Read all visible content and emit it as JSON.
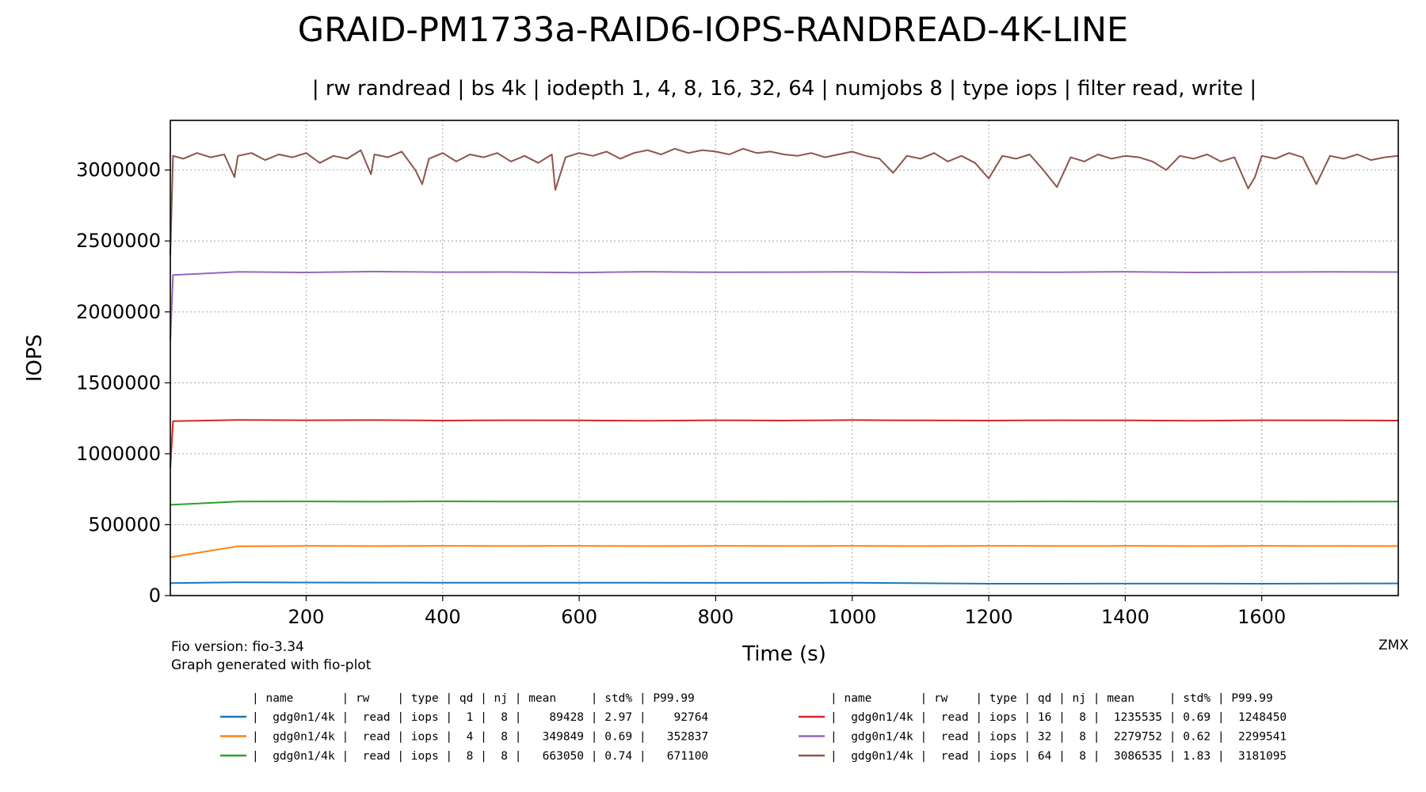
{
  "chart_data": {
    "type": "line",
    "title": "GRAID-PM1733a-RAID6-IOPS-RANDREAD-4K-LINE",
    "subtitle": "| rw randread | bs 4k | iodepth 1, 4, 8, 16, 32, 64 | numjobs 8 | type iops | filter read, write |",
    "xlabel": "Time (s)",
    "ylabel": "IOPS",
    "xlim": [
      1,
      1800
    ],
    "ylim": [
      0,
      3350000
    ],
    "xticks": [
      200,
      400,
      600,
      800,
      1000,
      1200,
      1400,
      1600
    ],
    "xtick_labels": [
      "200",
      "400",
      "600",
      "800",
      "1000",
      "1200",
      "1400",
      "1600"
    ],
    "yticks": [
      0,
      500000,
      1000000,
      1500000,
      2000000,
      2500000,
      3000000
    ],
    "ytick_labels": [
      "0",
      "500000",
      "1000000",
      "1500000",
      "2000000",
      "2500000",
      "3000000"
    ],
    "grid": true,
    "legend_placement": "bottom",
    "footnote_lines": [
      "Fio version: fio-3.34",
      "Graph generated with fio-plot"
    ],
    "corner_label": "ZMX",
    "legend_header": "| name       | rw    | type | qd | nj | mean     | std% | P99.99",
    "series": [
      {
        "color": "#1f77b4",
        "legend_row": "|  gdg0n1/4k |  read | iops |  1 |  8 |    89428 | 2.97 |    92764",
        "x": [
          1,
          100,
          200,
          300,
          400,
          500,
          600,
          700,
          800,
          900,
          1000,
          1100,
          1200,
          1300,
          1400,
          1500,
          1600,
          1700,
          1800
        ],
        "y": [
          88000,
          93000,
          92000,
          91500,
          91000,
          91000,
          90500,
          90500,
          90000,
          90000,
          91000,
          87000,
          84000,
          83500,
          84500,
          84500,
          83500,
          85000,
          86000
        ]
      },
      {
        "color": "#ff7f0e",
        "legend_row": "|  gdg0n1/4k |  read | iops |  4 |  8 |   349849 | 0.69 |   352837",
        "x": [
          1,
          100,
          200,
          300,
          400,
          500,
          600,
          700,
          800,
          900,
          1000,
          1100,
          1200,
          1300,
          1400,
          1500,
          1600,
          1700,
          1800
        ],
        "y": [
          270000,
          348000,
          350000,
          349000,
          350500,
          349500,
          350000,
          349000,
          350000,
          349500,
          350000,
          349000,
          350500,
          349500,
          350000,
          349000,
          350000,
          349500,
          349000
        ]
      },
      {
        "color": "#2ca02c",
        "legend_row": "|  gdg0n1/4k |  read | iops |  8 |  8 |   663050 | 0.74 |   671100",
        "x": [
          1,
          100,
          200,
          300,
          400,
          500,
          600,
          700,
          800,
          900,
          1000,
          1100,
          1200,
          1300,
          1400,
          1500,
          1600,
          1700,
          1800
        ],
        "y": [
          640000,
          663000,
          664000,
          662000,
          664500,
          663000,
          662500,
          663500,
          663000,
          662000,
          663500,
          662500,
          663000,
          664000,
          662500,
          663000,
          663500,
          662000,
          663000
        ]
      },
      {
        "color": "#d62728",
        "legend_row": "|  gdg0n1/4k |  read | iops | 16 |  8 |  1235535 | 0.69 |  1248450",
        "x": [
          1,
          5,
          100,
          200,
          300,
          400,
          500,
          600,
          700,
          800,
          900,
          1000,
          1100,
          1200,
          1300,
          1400,
          1500,
          1600,
          1700,
          1800
        ],
        "y": [
          900000,
          1230000,
          1238000,
          1236000,
          1237000,
          1234000,
          1236000,
          1235000,
          1233000,
          1236000,
          1234000,
          1237000,
          1235000,
          1234000,
          1236000,
          1235000,
          1233000,
          1236000,
          1235000,
          1234000
        ]
      },
      {
        "color": "#9467bd",
        "legend_row": "|  gdg0n1/4k |  read | iops | 32 |  8 |  2279752 | 0.62 |  2299541",
        "x": [
          1,
          5,
          100,
          200,
          300,
          400,
          500,
          600,
          700,
          800,
          900,
          1000,
          1100,
          1200,
          1300,
          1400,
          1500,
          1600,
          1700,
          1800
        ],
        "y": [
          1800000,
          2260000,
          2282000,
          2278000,
          2284000,
          2280000,
          2281000,
          2277000,
          2283000,
          2279000,
          2280000,
          2282000,
          2278000,
          2281000,
          2279000,
          2283000,
          2278000,
          2280000,
          2282000,
          2281000
        ]
      },
      {
        "color": "#8c564b",
        "legend_row": "|  gdg0n1/4k |  read | iops | 64 |  8 |  3086535 | 1.83 |  3181095",
        "x": [
          1,
          5,
          20,
          40,
          60,
          80,
          95,
          100,
          120,
          140,
          160,
          180,
          200,
          220,
          240,
          260,
          280,
          295,
          300,
          320,
          340,
          360,
          370,
          380,
          400,
          420,
          440,
          460,
          480,
          500,
          520,
          540,
          560,
          565,
          580,
          600,
          620,
          640,
          660,
          680,
          700,
          720,
          740,
          760,
          780,
          800,
          820,
          840,
          860,
          880,
          900,
          920,
          940,
          960,
          980,
          1000,
          1020,
          1040,
          1060,
          1080,
          1100,
          1120,
          1140,
          1160,
          1180,
          1200,
          1220,
          1240,
          1260,
          1280,
          1300,
          1320,
          1340,
          1360,
          1380,
          1400,
          1420,
          1440,
          1460,
          1480,
          1500,
          1520,
          1540,
          1560,
          1580,
          1590,
          1600,
          1620,
          1640,
          1660,
          1680,
          1700,
          1720,
          1740,
          1760,
          1780,
          1800
        ],
        "y": [
          2400000,
          3100000,
          3080000,
          3120000,
          3090000,
          3110000,
          2950000,
          3100000,
          3120000,
          3070000,
          3110000,
          3090000,
          3120000,
          3050000,
          3100000,
          3080000,
          3140000,
          2970000,
          3110000,
          3090000,
          3130000,
          3000000,
          2900000,
          3080000,
          3120000,
          3060000,
          3110000,
          3090000,
          3120000,
          3060000,
          3100000,
          3050000,
          3110000,
          2860000,
          3090000,
          3120000,
          3100000,
          3130000,
          3080000,
          3120000,
          3140000,
          3110000,
          3150000,
          3120000,
          3140000,
          3130000,
          3110000,
          3150000,
          3120000,
          3130000,
          3110000,
          3100000,
          3120000,
          3090000,
          3110000,
          3130000,
          3100000,
          3080000,
          2980000,
          3100000,
          3080000,
          3120000,
          3060000,
          3100000,
          3050000,
          2940000,
          3100000,
          3080000,
          3110000,
          3000000,
          2880000,
          3090000,
          3060000,
          3110000,
          3080000,
          3100000,
          3090000,
          3060000,
          3000000,
          3100000,
          3080000,
          3110000,
          3060000,
          3090000,
          2870000,
          2950000,
          3100000,
          3080000,
          3120000,
          3090000,
          2900000,
          3100000,
          3080000,
          3110000,
          3070000,
          3090000,
          3100000
        ]
      }
    ]
  }
}
